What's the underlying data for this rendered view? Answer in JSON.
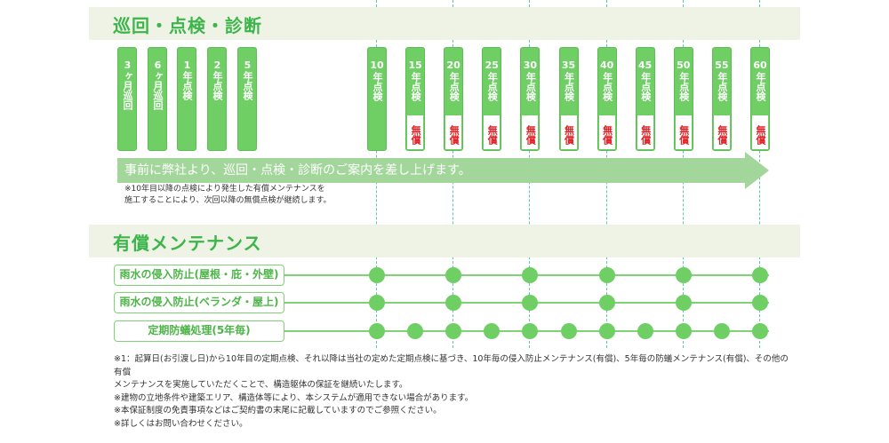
{
  "section1": {
    "title": "巡回・点検・診断"
  },
  "early_checks": [
    "3ヶ月巡回",
    "6ヶ月巡回",
    "1年点検",
    "2年点検",
    "5年点検"
  ],
  "year_checks": [
    {
      "year": "10",
      "label": "年点検",
      "free": ""
    },
    {
      "year": "15",
      "label": "年点検",
      "free": "無償"
    },
    {
      "year": "20",
      "label": "年点検",
      "free": "無償"
    },
    {
      "year": "25",
      "label": "年点検",
      "free": "無償"
    },
    {
      "year": "30",
      "label": "年点検",
      "free": "無償"
    },
    {
      "year": "35",
      "label": "年点検",
      "free": "無償"
    },
    {
      "year": "40",
      "label": "年点検",
      "free": "無償"
    },
    {
      "year": "45",
      "label": "年点検",
      "free": "無償"
    },
    {
      "year": "50",
      "label": "年点検",
      "free": "無償"
    },
    {
      "year": "55",
      "label": "年点検",
      "free": "無償"
    },
    {
      "year": "60",
      "label": "年点検",
      "free": "無償"
    }
  ],
  "arrow_text": "事前に弊社より、巡回・点検・診断のご案内を差し上げます。",
  "notes": [
    "※10年目以降の点検により発生した有償メンテナンスを",
    "施工することにより、次回以降の無償点検が継続します。"
  ],
  "section2": {
    "title": "有償メンテナンス"
  },
  "maintenance": [
    {
      "label": "雨水の侵入防止(屋根・庇・外壁)",
      "years": [
        10,
        20,
        30,
        40,
        50,
        60
      ]
    },
    {
      "label": "雨水の侵入防止(ベランダ・屋上)",
      "years": [
        10,
        20,
        30,
        40,
        50,
        60
      ]
    },
    {
      "label": "定期防蟻処理(5年毎)",
      "years": [
        10,
        15,
        20,
        25,
        30,
        35,
        40,
        45,
        50,
        55,
        60
      ]
    }
  ],
  "footnotes": [
    "※1：起算日(お引渡し日)から10年目の定期点検、それ以降は当社の定めた定期点検に基づき、10年毎の侵入防止メンテナンス(有償)、5年毎の防蟻メンテナンス(有償)、その他の有償",
    "メンテナンスを実施していただくことで、構造躯体の保証を継続いたします。",
    "※建物の立地条件や建築エリア、構造体等により、本システムが適用できない場合があります。",
    "※本保証制度の免責事項などはご契約書の末尾に記載していますのでご参照ください。",
    "※詳しくはお問い合わせください。"
  ],
  "colors": {
    "green": "#6fcf65",
    "title": "#3cb54a",
    "free": "#e0262a",
    "band": "#eef3e6"
  }
}
